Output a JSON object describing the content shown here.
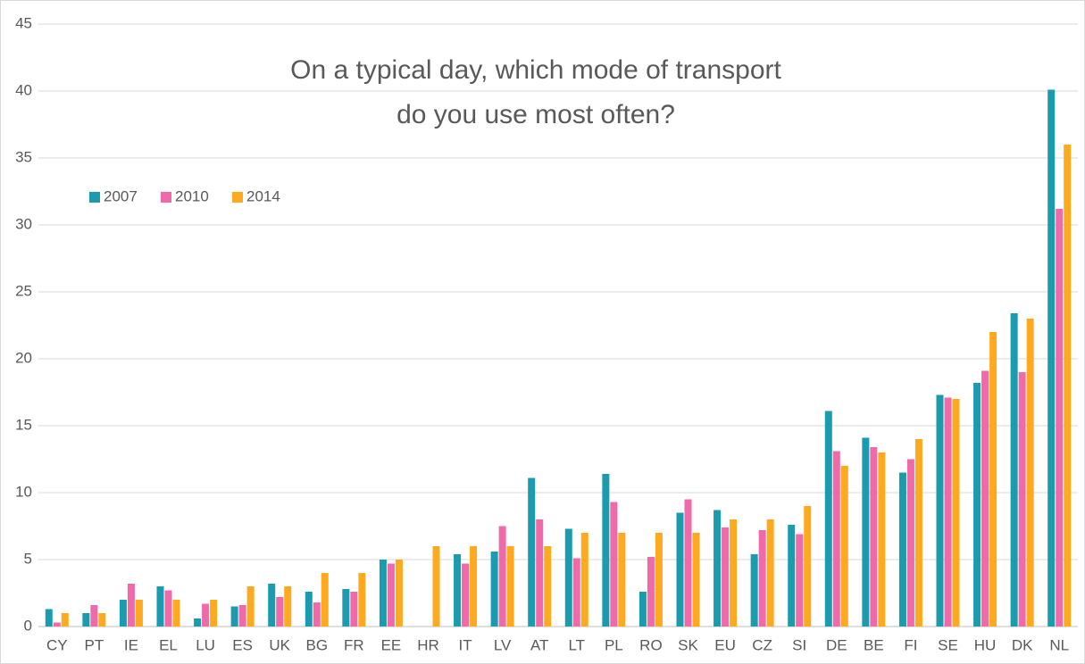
{
  "chart_data": {
    "type": "bar",
    "title": [
      "On a typical day, which mode of transport",
      "do you use most often?"
    ],
    "categories": [
      "CY",
      "PT",
      "IE",
      "EL",
      "LU",
      "ES",
      "UK",
      "BG",
      "FR",
      "EE",
      "HR",
      "IT",
      "LV",
      "AT",
      "LT",
      "PL",
      "RO",
      "SK",
      "EU",
      "CZ",
      "SI",
      "DE",
      "BE",
      "FI",
      "SE",
      "HU",
      "DK",
      "NL"
    ],
    "series": [
      {
        "name": "2007",
        "color": "#1a9bae",
        "values": [
          1.3,
          1.0,
          2.0,
          3.0,
          0.6,
          1.5,
          3.2,
          2.6,
          2.8,
          5.0,
          null,
          5.4,
          5.6,
          11.1,
          7.3,
          11.4,
          2.6,
          8.5,
          8.7,
          5.4,
          7.6,
          16.1,
          14.1,
          11.5,
          17.3,
          18.2,
          23.4,
          40.1
        ]
      },
      {
        "name": "2010",
        "color": "#f06aa9",
        "values": [
          0.3,
          1.6,
          3.2,
          2.7,
          1.7,
          1.6,
          2.2,
          1.8,
          2.6,
          4.7,
          null,
          4.7,
          7.5,
          8.0,
          5.1,
          9.3,
          5.2,
          9.5,
          7.4,
          7.2,
          6.9,
          13.1,
          13.4,
          12.5,
          17.1,
          19.1,
          19.0,
          31.2
        ]
      },
      {
        "name": "2014",
        "color": "#ffaa1e",
        "values": [
          1.0,
          1.0,
          2.0,
          2.0,
          2.0,
          3.0,
          3.0,
          4.0,
          4.0,
          5.0,
          6.0,
          6.0,
          6.0,
          6.0,
          7.0,
          7.0,
          7.0,
          7.0,
          8.0,
          8.0,
          9.0,
          12.0,
          13.0,
          14.0,
          17.0,
          22.0,
          23.0,
          36.0
        ]
      }
    ],
    "ylim": [
      0,
      45
    ],
    "yticks": [
      0,
      5,
      10,
      15,
      20,
      25,
      30,
      35,
      40,
      45
    ],
    "grid": true,
    "legend": "upper left"
  }
}
